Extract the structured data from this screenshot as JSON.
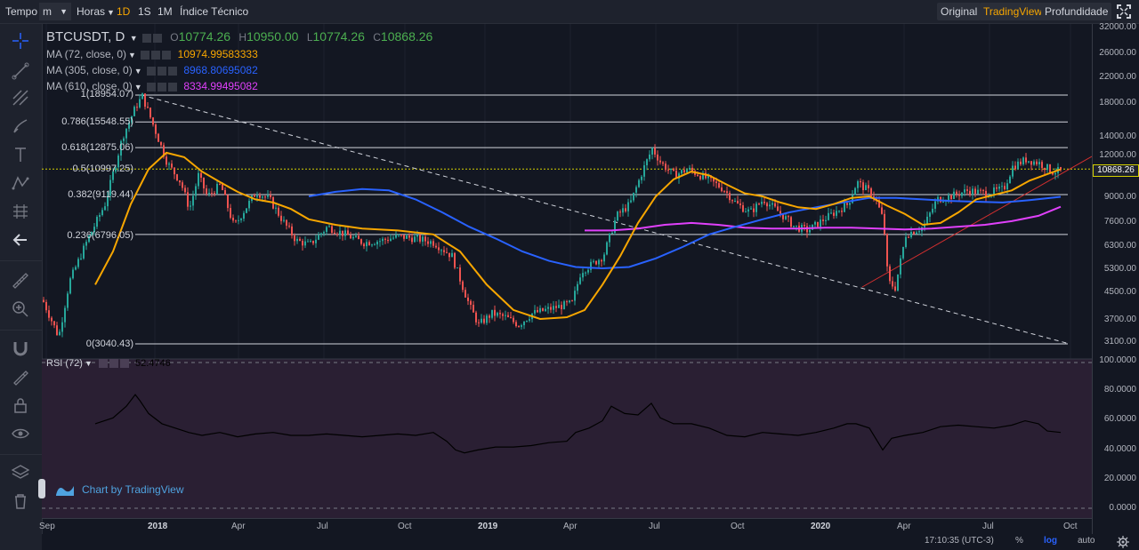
{
  "toolbar": {
    "tempo_label": "Tempo",
    "interval_unit": "m",
    "hours_label": "Horas",
    "intervals": [
      "1D",
      "1S",
      "1M"
    ],
    "indicators_label": "Índice Técnico",
    "views": [
      "Original",
      "TradingView",
      "Profundidade"
    ],
    "active_view": "TradingView",
    "active_interval": "1D"
  },
  "legend": {
    "symbol": "BTCUSDT, D",
    "ohlc": {
      "o_label": "O",
      "o_value": "10774.26",
      "h_label": "H",
      "h_value": "10950.00",
      "l_label": "L",
      "l_value": "10774.26",
      "c_label": "C",
      "c_value": "10868.26"
    },
    "indicators": [
      {
        "label": "MA (72, close, 0)",
        "value": "10974.99583333",
        "color": "#f7a600"
      },
      {
        "label": "MA (305, close, 0)",
        "value": "8968.80695082",
        "color": "#2962ff"
      },
      {
        "label": "MA (610, close, 0)",
        "value": "8334.99495082",
        "color": "#e040fb"
      }
    ]
  },
  "fibonacci": [
    {
      "label": "1(18954.07)",
      "price": 18954.07
    },
    {
      "label": "0.786(15548.55)",
      "price": 15548.55
    },
    {
      "label": "0.618(12875.06)",
      "price": 12875.06
    },
    {
      "label": "0.5(10997.25)",
      "price": 10997.25
    },
    {
      "label": "0.382(9119.44)",
      "price": 9119.44
    },
    {
      "label": "0.236(6796.05)",
      "price": 6796.05
    },
    {
      "label": "0(3040.43)",
      "price": 3040.43
    }
  ],
  "price_axis": [
    "32000.00",
    "26000.00",
    "22000.00",
    "18000.00",
    "14000.00",
    "12000.00",
    "9000.00",
    "7600.00",
    "6300.00",
    "5300.00",
    "4500.00",
    "3700.00",
    "3100.00"
  ],
  "current_price": "10868.26",
  "rsi": {
    "label": "RSI (72)",
    "value": "52.4746",
    "axis": [
      "100.0000",
      "80.0000",
      "60.0000",
      "40.0000",
      "20.0000",
      "0.0000"
    ]
  },
  "time_axis": [
    {
      "label": "Sep",
      "bold": false
    },
    {
      "label": "2018",
      "bold": true
    },
    {
      "label": "Apr",
      "bold": false
    },
    {
      "label": "Jul",
      "bold": false
    },
    {
      "label": "Oct",
      "bold": false
    },
    {
      "label": "2019",
      "bold": true
    },
    {
      "label": "Apr",
      "bold": false
    },
    {
      "label": "Jul",
      "bold": false
    },
    {
      "label": "Oct",
      "bold": false
    },
    {
      "label": "2020",
      "bold": true
    },
    {
      "label": "Apr",
      "bold": false
    },
    {
      "label": "Jul",
      "bold": false
    },
    {
      "label": "Oct",
      "bold": false
    }
  ],
  "bottom": {
    "clock": "17:10:35 (UTC-3)",
    "percent": "%",
    "log": "log",
    "auto": "auto"
  },
  "watermark": "Chart by TradingView",
  "colors": {
    "background": "#131722",
    "up": "#26a69a",
    "down": "#ef5350",
    "ma72": "#f7a600",
    "ma305": "#2962ff",
    "ma610": "#e040fb",
    "rsi_bg": "#2a1f33"
  }
}
